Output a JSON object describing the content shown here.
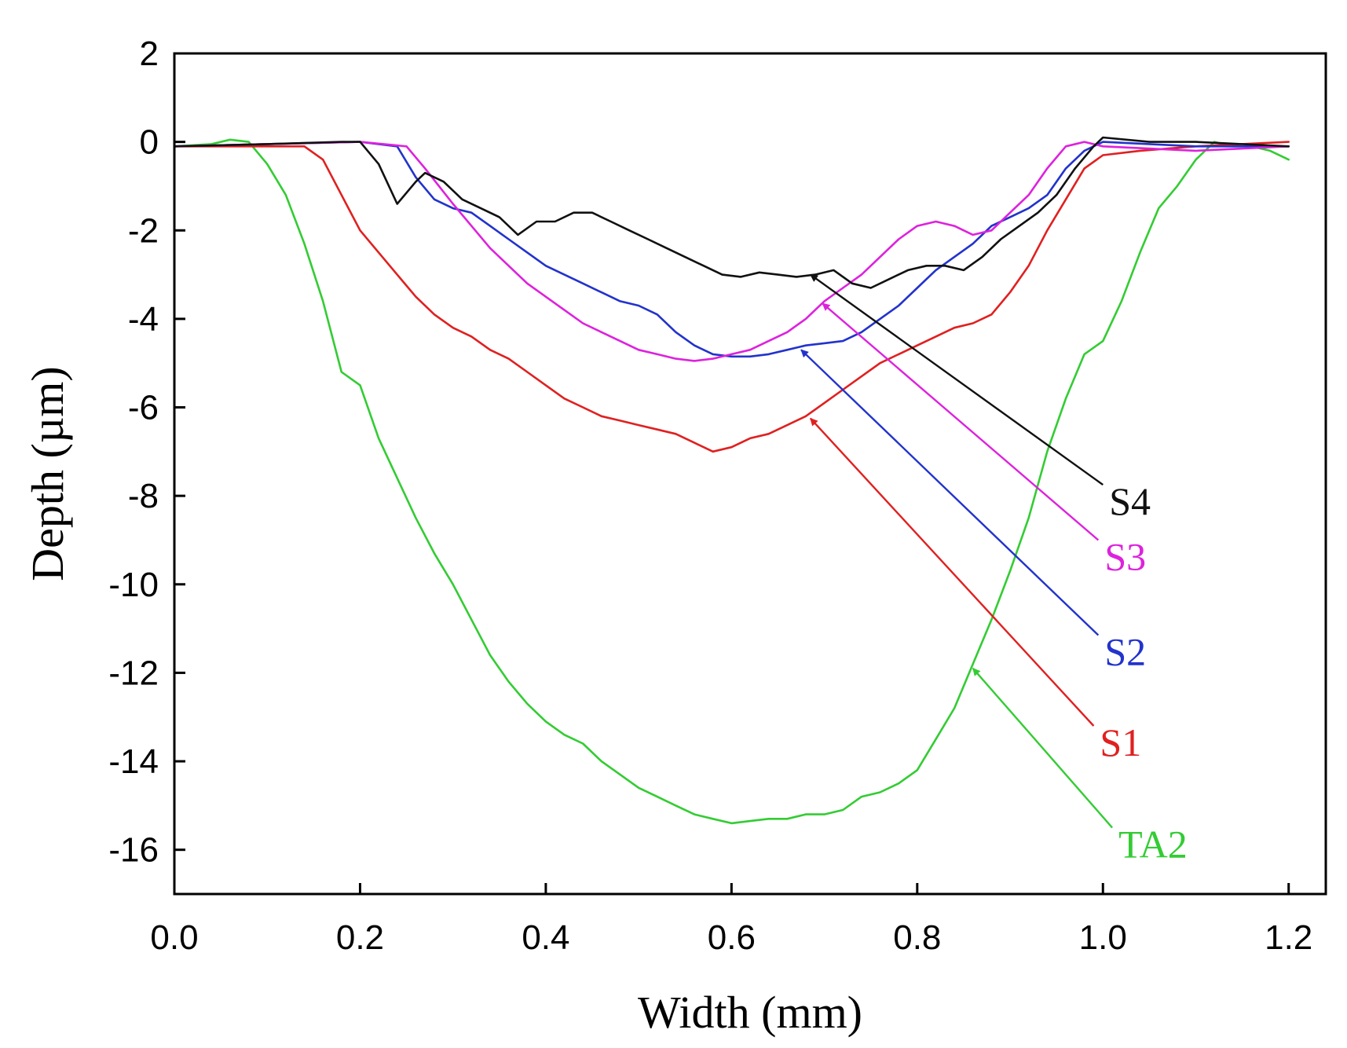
{
  "chart_data": {
    "type": "line",
    "title": "",
    "xlabel": "Width (mm)",
    "ylabel": "Depth (µm)",
    "xlim": [
      0.0,
      1.24
    ],
    "ylim": [
      -17,
      2
    ],
    "xticks": [
      0.0,
      0.2,
      0.4,
      0.6,
      0.8,
      1.0,
      1.2
    ],
    "xtick_labels": [
      "0.0",
      "0.2",
      "0.4",
      "0.6",
      "0.8",
      "1.0",
      "1.2"
    ],
    "yticks": [
      2,
      0,
      -2,
      -4,
      -6,
      -8,
      -10,
      -12,
      -14,
      -16
    ],
    "ytick_labels": [
      "2",
      "0",
      "-2",
      "-4",
      "-6",
      "-8",
      "-10",
      "-12",
      "-14",
      "-16"
    ],
    "grid": false,
    "series": [
      {
        "name": "TA2",
        "color": "#33cc33",
        "x": [
          0.0,
          0.04,
          0.06,
          0.08,
          0.1,
          0.12,
          0.14,
          0.16,
          0.18,
          0.2,
          0.22,
          0.24,
          0.26,
          0.28,
          0.3,
          0.32,
          0.34,
          0.36,
          0.38,
          0.4,
          0.42,
          0.44,
          0.46,
          0.48,
          0.5,
          0.52,
          0.54,
          0.56,
          0.58,
          0.6,
          0.62,
          0.64,
          0.66,
          0.68,
          0.7,
          0.72,
          0.74,
          0.76,
          0.78,
          0.8,
          0.82,
          0.84,
          0.86,
          0.88,
          0.9,
          0.92,
          0.94,
          0.96,
          0.98,
          1.0,
          1.02,
          1.04,
          1.06,
          1.08,
          1.1,
          1.12,
          1.14,
          1.16,
          1.18,
          1.2
        ],
        "y": [
          -0.1,
          -0.05,
          0.05,
          0.0,
          -0.5,
          -1.2,
          -2.3,
          -3.6,
          -5.2,
          -5.5,
          -6.7,
          -7.6,
          -8.5,
          -9.3,
          -10.0,
          -10.8,
          -11.6,
          -12.2,
          -12.7,
          -13.1,
          -13.4,
          -13.6,
          -14.0,
          -14.3,
          -14.6,
          -14.8,
          -15.0,
          -15.2,
          -15.3,
          -15.4,
          -15.35,
          -15.3,
          -15.3,
          -15.2,
          -15.2,
          -15.1,
          -14.8,
          -14.7,
          -14.5,
          -14.2,
          -13.5,
          -12.8,
          -11.8,
          -10.8,
          -9.7,
          -8.5,
          -7.0,
          -5.8,
          -4.8,
          -4.5,
          -3.6,
          -2.5,
          -1.5,
          -1.0,
          -0.4,
          0.0,
          -0.1,
          -0.1,
          -0.2,
          -0.4
        ]
      },
      {
        "name": "S1",
        "color": "#e02020",
        "x": [
          0.0,
          0.1,
          0.14,
          0.16,
          0.18,
          0.2,
          0.22,
          0.24,
          0.26,
          0.28,
          0.3,
          0.32,
          0.34,
          0.36,
          0.38,
          0.4,
          0.42,
          0.44,
          0.46,
          0.48,
          0.5,
          0.52,
          0.54,
          0.56,
          0.58,
          0.6,
          0.62,
          0.64,
          0.66,
          0.68,
          0.7,
          0.72,
          0.74,
          0.76,
          0.78,
          0.8,
          0.82,
          0.84,
          0.86,
          0.88,
          0.9,
          0.92,
          0.94,
          0.96,
          0.98,
          1.0,
          1.04,
          1.1,
          1.2
        ],
        "y": [
          -0.1,
          -0.1,
          -0.1,
          -0.4,
          -1.2,
          -2.0,
          -2.5,
          -3.0,
          -3.5,
          -3.9,
          -4.2,
          -4.4,
          -4.7,
          -4.9,
          -5.2,
          -5.5,
          -5.8,
          -6.0,
          -6.2,
          -6.3,
          -6.4,
          -6.5,
          -6.6,
          -6.8,
          -7.0,
          -6.9,
          -6.7,
          -6.6,
          -6.4,
          -6.2,
          -5.9,
          -5.6,
          -5.3,
          -5.0,
          -4.8,
          -4.6,
          -4.4,
          -4.2,
          -4.1,
          -3.9,
          -3.4,
          -2.8,
          -2.0,
          -1.3,
          -0.6,
          -0.3,
          -0.2,
          -0.1,
          0.0
        ]
      },
      {
        "name": "S2",
        "color": "#2233cc",
        "x": [
          0.0,
          0.1,
          0.2,
          0.24,
          0.26,
          0.28,
          0.3,
          0.32,
          0.34,
          0.36,
          0.38,
          0.4,
          0.42,
          0.44,
          0.46,
          0.48,
          0.5,
          0.52,
          0.54,
          0.56,
          0.58,
          0.6,
          0.62,
          0.64,
          0.66,
          0.68,
          0.7,
          0.72,
          0.74,
          0.76,
          0.78,
          0.8,
          0.82,
          0.84,
          0.86,
          0.88,
          0.9,
          0.92,
          0.94,
          0.96,
          0.98,
          1.0,
          1.1,
          1.2
        ],
        "y": [
          -0.1,
          -0.05,
          0.0,
          -0.1,
          -0.8,
          -1.3,
          -1.5,
          -1.6,
          -1.9,
          -2.2,
          -2.5,
          -2.8,
          -3.0,
          -3.2,
          -3.4,
          -3.6,
          -3.7,
          -3.9,
          -4.3,
          -4.6,
          -4.8,
          -4.85,
          -4.85,
          -4.8,
          -4.7,
          -4.6,
          -4.55,
          -4.5,
          -4.3,
          -4.0,
          -3.7,
          -3.3,
          -2.9,
          -2.6,
          -2.3,
          -1.9,
          -1.7,
          -1.5,
          -1.2,
          -0.6,
          -0.2,
          0.0,
          -0.1,
          -0.1
        ]
      },
      {
        "name": "S3",
        "color": "#dd22dd",
        "x": [
          0.0,
          0.1,
          0.2,
          0.25,
          0.27,
          0.3,
          0.32,
          0.34,
          0.36,
          0.38,
          0.4,
          0.42,
          0.44,
          0.46,
          0.48,
          0.5,
          0.52,
          0.54,
          0.56,
          0.58,
          0.6,
          0.62,
          0.64,
          0.66,
          0.68,
          0.7,
          0.72,
          0.74,
          0.76,
          0.78,
          0.8,
          0.82,
          0.84,
          0.86,
          0.88,
          0.9,
          0.92,
          0.94,
          0.96,
          0.98,
          1.0,
          1.1,
          1.2
        ],
        "y": [
          -0.1,
          -0.05,
          0.0,
          -0.1,
          -0.6,
          -1.4,
          -1.9,
          -2.4,
          -2.8,
          -3.2,
          -3.5,
          -3.8,
          -4.1,
          -4.3,
          -4.5,
          -4.7,
          -4.8,
          -4.9,
          -4.95,
          -4.9,
          -4.8,
          -4.7,
          -4.5,
          -4.3,
          -4.0,
          -3.6,
          -3.3,
          -3.0,
          -2.6,
          -2.2,
          -1.9,
          -1.8,
          -1.9,
          -2.1,
          -2.0,
          -1.6,
          -1.2,
          -0.6,
          -0.1,
          0.0,
          -0.1,
          -0.2,
          -0.1
        ]
      },
      {
        "name": "S4",
        "color": "#111111",
        "x": [
          0.0,
          0.1,
          0.18,
          0.2,
          0.22,
          0.24,
          0.26,
          0.27,
          0.29,
          0.31,
          0.33,
          0.35,
          0.37,
          0.39,
          0.41,
          0.43,
          0.45,
          0.47,
          0.49,
          0.51,
          0.53,
          0.55,
          0.57,
          0.59,
          0.61,
          0.63,
          0.65,
          0.67,
          0.69,
          0.71,
          0.73,
          0.75,
          0.77,
          0.79,
          0.81,
          0.83,
          0.85,
          0.87,
          0.89,
          0.91,
          0.93,
          0.95,
          0.97,
          0.99,
          1.0,
          1.05,
          1.1,
          1.2
        ],
        "y": [
          -0.1,
          -0.05,
          0.0,
          0.0,
          -0.5,
          -1.4,
          -0.9,
          -0.7,
          -0.9,
          -1.3,
          -1.5,
          -1.7,
          -2.1,
          -1.8,
          -1.8,
          -1.6,
          -1.6,
          -1.8,
          -2.0,
          -2.2,
          -2.4,
          -2.6,
          -2.8,
          -3.0,
          -3.05,
          -2.95,
          -3.0,
          -3.05,
          -3.0,
          -2.9,
          -3.2,
          -3.3,
          -3.1,
          -2.9,
          -2.8,
          -2.8,
          -2.9,
          -2.6,
          -2.2,
          -1.9,
          -1.6,
          -1.2,
          -0.6,
          -0.1,
          0.1,
          0.0,
          0.0,
          -0.1
        ]
      }
    ],
    "annotations": [
      {
        "label": "S4",
        "color": "#111111",
        "text_x": 1.0,
        "text_y": -7.75,
        "arrow_to_x": 0.685,
        "arrow_to_y": -3.0
      },
      {
        "label": "S3",
        "color": "#dd22dd",
        "text_x": 0.995,
        "text_y": -9.0,
        "arrow_to_x": 0.698,
        "arrow_to_y": -3.65
      },
      {
        "label": "S2",
        "color": "#2233cc",
        "text_x": 0.995,
        "text_y": -11.15,
        "arrow_to_x": 0.675,
        "arrow_to_y": -4.7
      },
      {
        "label": "S1",
        "color": "#e02020",
        "text_x": 0.99,
        "text_y": -13.2,
        "arrow_to_x": 0.685,
        "arrow_to_y": -6.25
      },
      {
        "label": "TA2",
        "color": "#33cc33",
        "text_x": 1.01,
        "text_y": -15.5,
        "arrow_to_x": 0.86,
        "arrow_to_y": -11.9
      }
    ]
  }
}
